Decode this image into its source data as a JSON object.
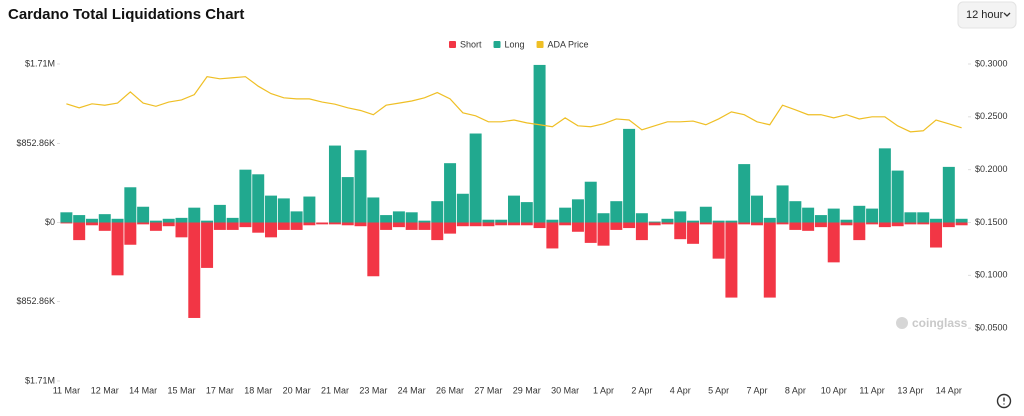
{
  "chart_data": {
    "type": "bar",
    "title": "Cardano Total Liquidations Chart",
    "categories": [
      "11 Mar",
      null,
      null,
      "12 Mar",
      null,
      null,
      "14 Mar",
      null,
      null,
      "15 Mar",
      null,
      null,
      "17 Mar",
      null,
      null,
      "18 Mar",
      null,
      null,
      "20 Mar",
      null,
      null,
      "21 Mar",
      null,
      null,
      "23 Mar",
      null,
      null,
      "24 Mar",
      null,
      null,
      "26 Mar",
      null,
      null,
      "27 Mar",
      null,
      null,
      "29 Mar",
      null,
      null,
      "30 Mar",
      null,
      null,
      "1 Apr",
      null,
      null,
      "2 Apr",
      null,
      null,
      "4 Apr",
      null,
      null,
      "5 Apr",
      null,
      null,
      "7 Apr",
      null,
      null,
      "8 Apr",
      null,
      null,
      "10 Apr",
      null,
      null,
      "11 Apr",
      null,
      null,
      "13 Apr",
      null,
      null,
      "14 Apr",
      null
    ],
    "series": [
      {
        "name": "Short",
        "color": "#f23645",
        "values": [
          -10000,
          -190000,
          -30000,
          -90000,
          -570000,
          -240000,
          -20000,
          -90000,
          -40000,
          -160000,
          -1030000,
          -490000,
          -80000,
          -80000,
          -50000,
          -110000,
          -160000,
          -80000,
          -80000,
          -30000,
          -20000,
          -20000,
          -30000,
          -40000,
          -580000,
          -80000,
          -50000,
          -80000,
          -80000,
          -190000,
          -120000,
          -40000,
          -40000,
          -40000,
          -30000,
          -30000,
          -30000,
          -60000,
          -280000,
          -30000,
          -100000,
          -220000,
          -250000,
          -80000,
          -60000,
          -190000,
          -30000,
          -20000,
          -180000,
          -230000,
          -20000,
          -390000,
          -810000,
          -20000,
          -30000,
          -810000,
          -20000,
          -80000,
          -90000,
          -50000,
          -430000,
          -30000,
          -190000,
          -20000,
          -50000,
          -40000,
          -20000,
          -20000,
          -270000,
          -50000,
          -30000
        ]
      },
      {
        "name": "Long",
        "color": "#21a98f",
        "values": [
          110000,
          80000,
          40000,
          90000,
          40000,
          380000,
          170000,
          20000,
          40000,
          50000,
          160000,
          20000,
          190000,
          50000,
          570000,
          520000,
          290000,
          260000,
          120000,
          280000,
          0,
          830000,
          490000,
          780000,
          270000,
          80000,
          120000,
          110000,
          20000,
          230000,
          640000,
          310000,
          960000,
          30000,
          30000,
          290000,
          220000,
          1700000,
          30000,
          160000,
          250000,
          440000,
          100000,
          230000,
          1010000,
          100000,
          10000,
          40000,
          120000,
          20000,
          170000,
          20000,
          20000,
          630000,
          290000,
          50000,
          400000,
          230000,
          160000,
          80000,
          150000,
          30000,
          180000,
          150000,
          800000,
          560000,
          110000,
          110000,
          40000,
          600000,
          40000
        ]
      },
      {
        "name": "ADA Price",
        "color": "#efbf25",
        "type": "line",
        "axis": "y2",
        "values": [
          0.2623,
          0.2585,
          0.2623,
          0.261,
          0.263,
          0.2736,
          0.263,
          0.26,
          0.264,
          0.266,
          0.271,
          0.288,
          0.286,
          0.287,
          0.288,
          0.279,
          0.272,
          0.268,
          0.267,
          0.267,
          0.264,
          0.262,
          0.2585,
          0.256,
          0.252,
          0.261,
          0.263,
          0.265,
          0.268,
          0.273,
          0.267,
          0.2538,
          0.251,
          0.2453,
          0.2453,
          0.247,
          0.2443,
          0.2425,
          0.2406,
          0.249,
          0.2415,
          0.2406,
          0.2434,
          0.248,
          0.247,
          0.2377,
          0.2415,
          0.2453,
          0.2453,
          0.246,
          0.2425,
          0.248,
          0.2547,
          0.252,
          0.2453,
          0.2425,
          0.261,
          0.2566,
          0.252,
          0.252,
          0.249,
          0.252,
          0.248,
          0.25,
          0.25,
          0.2415,
          0.2358,
          0.2368,
          0.247,
          0.2434,
          0.2396
        ]
      }
    ],
    "ylim": [
      -1710000,
      1710000
    ],
    "yticks": [
      {
        "value": 1710000,
        "label": "$1.71M"
      },
      {
        "value": 852860,
        "label": "$852.86K"
      },
      {
        "value": 0,
        "label": "$0"
      },
      {
        "value": -852860,
        "label": "$852.86K"
      },
      {
        "value": -1710000,
        "label": "$1.71M"
      }
    ],
    "y2lim": [
      0,
      0.3
    ],
    "y2ticks": [
      {
        "value": 0.3,
        "label": "$0.3000"
      },
      {
        "value": 0.25,
        "label": "$0.2500"
      },
      {
        "value": 0.2,
        "label": "$0.2000"
      },
      {
        "value": 0.15,
        "label": "$0.1500"
      },
      {
        "value": 0.1,
        "label": "$0.1000"
      },
      {
        "value": 0.05,
        "label": "$0.0500"
      }
    ],
    "grid": false
  },
  "controls": {
    "interval": "12 hour"
  },
  "watermark": "coinglass"
}
